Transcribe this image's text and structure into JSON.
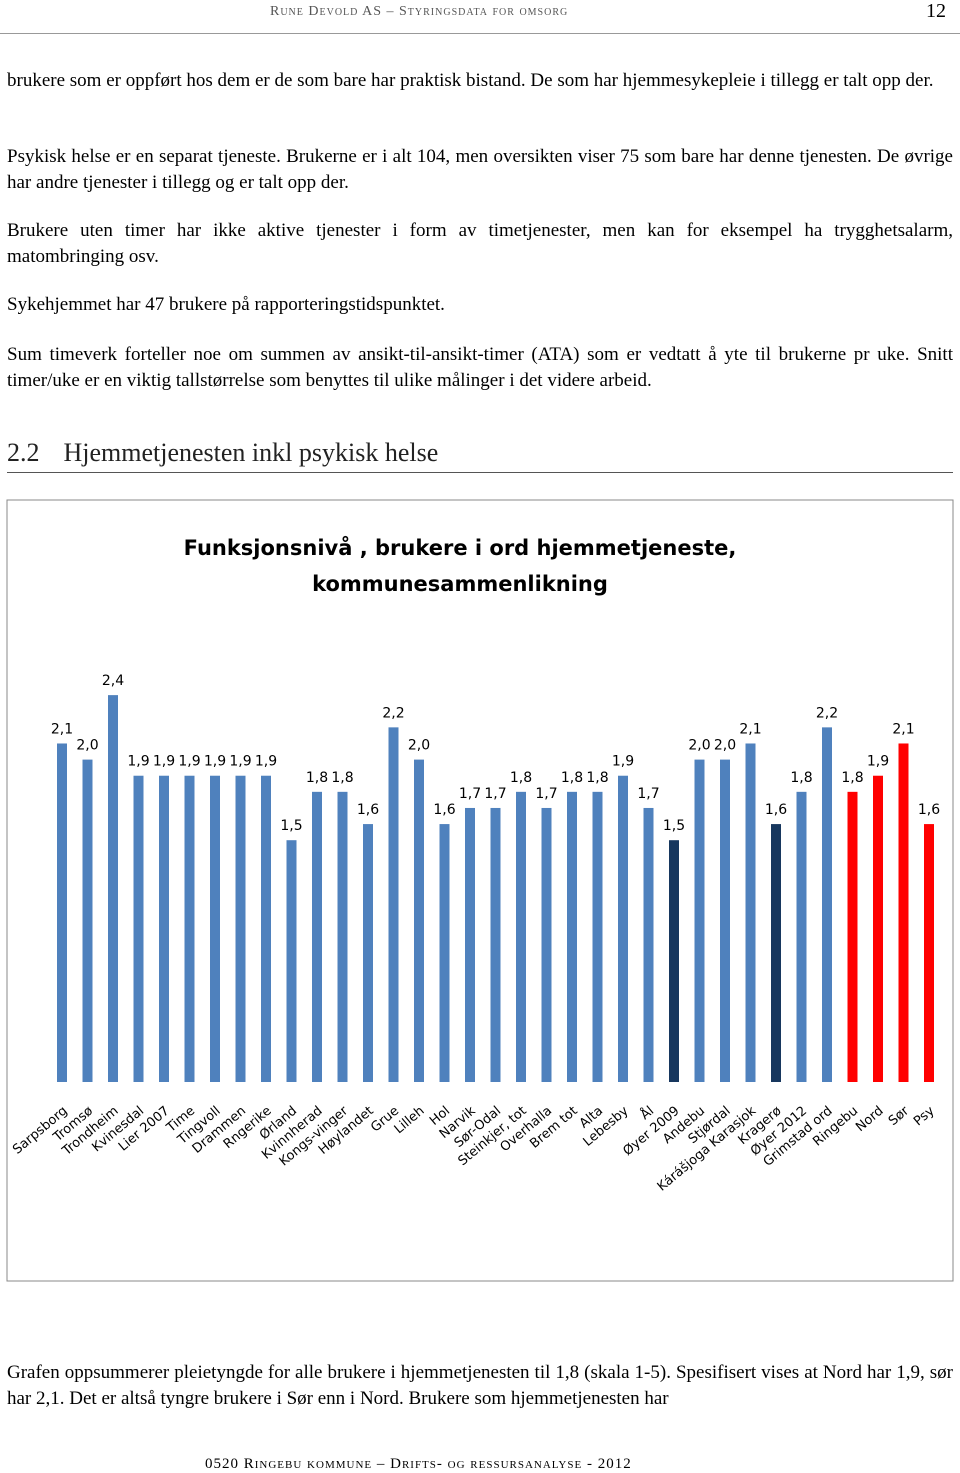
{
  "header": {
    "title": "Rune Devold AS – Styringsdata for omsorg",
    "page": "12"
  },
  "paragraphs": [
    "brukere som er oppført hos dem er de som bare har praktisk bistand. De som har hjemmesykepleie i tillegg er talt opp der.",
    "Psykisk helse er en separat tjeneste. Brukerne er i alt 104, men oversikten viser 75 som bare har denne tjenesten. De øvrige har andre tjenester i tillegg og er talt opp der.",
    "Brukere uten timer har ikke aktive tjenester i form av timetjenester, men kan for eksempel ha trygghetsalarm, matombringing osv.",
    "Sykehjemmet har 47 brukere på rapporteringstidspunktet.",
    "Sum timeverk forteller noe om summen av ansikt-til-ansikt-timer (ATA) som er vedtatt å yte til brukerne pr uke. Snitt timer/uke er en viktig tallstørrelse som benyttes til ulike målinger i det videre arbeid."
  ],
  "heading": {
    "number": "2.2",
    "text": "Hjemmetjenesten inkl psykisk helse"
  },
  "chart_data": {
    "type": "bar",
    "title": "Funksjonsnivå , brukere i ord hjemmetjeneste, kommunesammenlikning",
    "categories": [
      "Sarpsborg",
      "Tromsø",
      "Trondheim",
      "Kvinesdal",
      "Lier 2007",
      "Time",
      "Tingvoll",
      "Drammen",
      "Rngerike",
      "Ørland",
      "Kvinnherad",
      "Kongs-vinger",
      "Høylandet",
      "Grue",
      "Lilleh",
      "Hol",
      "Narvik",
      "Sør-Odal",
      "Steinkjer, tot",
      "Overhalla",
      "Brem tot",
      "Alta",
      "Lebesby",
      "Ål",
      "Øyer 2009",
      "Andebu",
      "Stjørdal",
      "Kárášjoga Karasjok",
      "Kragerø",
      "Øyer 2012",
      "Grimstad ord",
      "Ringebu",
      "Nord",
      "Sør",
      "Psy"
    ],
    "values": [
      2.1,
      2.0,
      2.4,
      1.9,
      1.9,
      1.9,
      1.9,
      1.9,
      1.9,
      1.5,
      1.8,
      1.8,
      1.6,
      2.2,
      2.0,
      1.6,
      1.7,
      1.7,
      1.8,
      1.7,
      1.8,
      1.8,
      1.9,
      1.7,
      1.5,
      2.0,
      2.0,
      2.1,
      1.6,
      1.8,
      2.2,
      1.8,
      1.9,
      2.1,
      1.6
    ],
    "value_labels": [
      "2,1",
      "2,0",
      "2,4",
      "1,9",
      "1,9",
      "1,9",
      "1,9",
      "1,9",
      "1,9",
      "1,5",
      "1,8",
      "1,8",
      "1,6",
      "2,2",
      "2,0",
      "1,6",
      "1,7",
      "1,7",
      "1,8",
      "1,7",
      "1,8",
      "1,8",
      "1,9",
      "1,7",
      "1,5",
      "2,0",
      "2,0",
      "2,1",
      "1,6",
      "1,8",
      "2,2",
      "1,8",
      "1,9",
      "2,1",
      "1,6"
    ],
    "colors": [
      "#4f81bd",
      "#4f81bd",
      "#4f81bd",
      "#4f81bd",
      "#4f81bd",
      "#4f81bd",
      "#4f81bd",
      "#4f81bd",
      "#4f81bd",
      "#4f81bd",
      "#4f81bd",
      "#4f81bd",
      "#4f81bd",
      "#4f81bd",
      "#4f81bd",
      "#4f81bd",
      "#4f81bd",
      "#4f81bd",
      "#4f81bd",
      "#4f81bd",
      "#4f81bd",
      "#4f81bd",
      "#4f81bd",
      "#4f81bd",
      "#17375e",
      "#4f81bd",
      "#4f81bd",
      "#4f81bd",
      "#17375e",
      "#4f81bd",
      "#4f81bd",
      "#ff0000",
      "#ff0000",
      "#ff0000",
      "#ff0000"
    ],
    "ylim": [
      0,
      2.5
    ]
  },
  "after_paragraph": "Grafen oppsummerer pleietyngde for alle brukere i hjemmetjenesten til 1,8 (skala 1-5). Spesifisert vises at Nord har 1,9, sør har 2,1. Det er altså tyngre brukere i Sør enn i Nord. Brukere som hjemmetjenesten har",
  "footer": "0520 Ringebu kommune – Drifts- og ressursanalyse - 2012"
}
